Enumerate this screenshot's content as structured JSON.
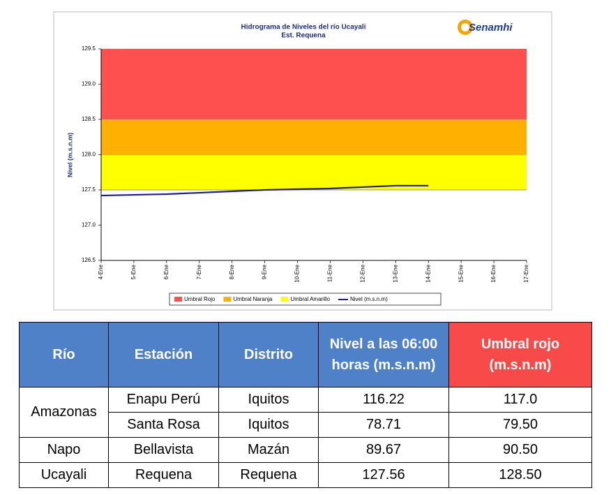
{
  "chart_data": {
    "type": "line",
    "title": "Hidrograma de Niveles del río Ucayali",
    "subtitle": "Est. Requena",
    "logo": "Senamhi",
    "ylabel": "Nivel (m.s.n.m)",
    "categories": [
      "4-Ene",
      "5-Ene",
      "6-Ene",
      "7-Ene",
      "8-Ene",
      "9-Ene",
      "10-Ene",
      "11-Ene",
      "12-Ene",
      "13-Ene",
      "14-Ene",
      "15-Ene",
      "16-Ene",
      "17-Ene"
    ],
    "bands": [
      {
        "name": "Umbral Rojo",
        "color": "#ff5050",
        "from": 128.5,
        "to": 129.5
      },
      {
        "name": "Umbral Naranja",
        "color": "#ffb000",
        "from": 128.0,
        "to": 128.5
      },
      {
        "name": "Umbral Amarillo",
        "color": "#ffff00",
        "from": 127.5,
        "to": 128.0
      }
    ],
    "series": [
      {
        "name": "Nivel (m.s.n.m)",
        "color": "#1b1b9e",
        "values": [
          127.42,
          127.43,
          127.44,
          127.46,
          127.48,
          127.5,
          127.51,
          127.52,
          127.54,
          127.56,
          127.56,
          null,
          null,
          null
        ]
      }
    ],
    "ylim": [
      126.5,
      129.5
    ],
    "yticks": [
      126.5,
      {
        "value": 127,
        "label": "127.0"
      },
      127.5,
      {
        "value": 128,
        "label": "128.0"
      },
      128.5,
      {
        "value": 129,
        "label": "129.0"
      },
      129.5
    ],
    "legend": "bottom"
  },
  "table": {
    "header": [
      "Río",
      "Estación",
      "Distrito",
      "Nivel a las 06:00 horas (m.s.n.m)",
      "Umbral rojo (m.s.n.m)"
    ],
    "groups": [
      {
        "river": "Amazonas",
        "rows": [
          [
            "Enapu Perú",
            "Iquitos",
            "116.22",
            "117.0"
          ],
          [
            "Santa Rosa",
            "Iquitos",
            "78.71",
            "79.50"
          ]
        ]
      },
      {
        "river": "Napo",
        "rows": [
          [
            "Bellavista",
            "Mazán",
            "89.67",
            "90.50"
          ]
        ]
      },
      {
        "river": "Ucayali",
        "rows": [
          [
            "Requena",
            "Requena",
            "127.56",
            "128.50"
          ]
        ]
      }
    ]
  }
}
